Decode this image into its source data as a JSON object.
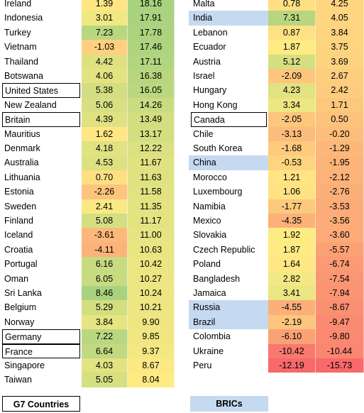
{
  "tables": [
    {
      "rows": [
        {
          "country": "Ireland",
          "a": "1.39",
          "b": "18.16"
        },
        {
          "country": "Indonesia",
          "a": "3.01",
          "b": "17.91"
        },
        {
          "country": "Turkey",
          "a": "7.23",
          "b": "17.78"
        },
        {
          "country": "Vietnam",
          "a": "-1.03",
          "b": "17.46"
        },
        {
          "country": "Thailand",
          "a": "4.42",
          "b": "17.11"
        },
        {
          "country": "Botswana",
          "a": "4.06",
          "b": "16.38"
        },
        {
          "country": "United States",
          "a": "5.38",
          "b": "16.05",
          "legend": 0
        },
        {
          "country": "New Zealand",
          "a": "5.06",
          "b": "14.26"
        },
        {
          "country": "Britain",
          "a": "4.39",
          "b": "13.49",
          "legend": 0
        },
        {
          "country": "Mauritius",
          "a": "1.62",
          "b": "13.17"
        },
        {
          "country": "Denmark",
          "a": "4.18",
          "b": "12.22"
        },
        {
          "country": "Australia",
          "a": "4.53",
          "b": "11.67"
        },
        {
          "country": "Lithuania",
          "a": "0.70",
          "b": "11.63"
        },
        {
          "country": "Estonia",
          "a": "-2.26",
          "b": "11.58"
        },
        {
          "country": "Sweden",
          "a": "2.41",
          "b": "11.35"
        },
        {
          "country": "Finland",
          "a": "5.08",
          "b": "11.17"
        },
        {
          "country": "Iceland",
          "a": "-3.61",
          "b": "11.00"
        },
        {
          "country": "Croatia",
          "a": "-4.11",
          "b": "10.63"
        },
        {
          "country": "Portugal",
          "a": "6.16",
          "b": "10.42"
        },
        {
          "country": "Oman",
          "a": "6.05",
          "b": "10.27"
        },
        {
          "country": "Sri Lanka",
          "a": "8.46",
          "b": "10.24"
        },
        {
          "country": "Belgium",
          "a": "5.29",
          "b": "10.21"
        },
        {
          "country": "Norway",
          "a": "3.84",
          "b": "9.90"
        },
        {
          "country": "Germany",
          "a": "7.22",
          "b": "9.85",
          "legend": 0
        },
        {
          "country": "France",
          "a": "6.64",
          "b": "9.37",
          "legend": 0
        },
        {
          "country": "Singapore",
          "a": "4.03",
          "b": "8.67"
        },
        {
          "country": "Taiwan",
          "a": "5.05",
          "b": "8.04"
        }
      ]
    },
    {
      "rows": [
        {
          "country": "Malta",
          "a": "0.78",
          "b": "4.25"
        },
        {
          "country": "India",
          "a": "7.31",
          "b": "4.05",
          "legend": 1
        },
        {
          "country": "Lebanon",
          "a": "0.87",
          "b": "3.84"
        },
        {
          "country": "Ecuador",
          "a": "1.87",
          "b": "3.75"
        },
        {
          "country": "Austria",
          "a": "5.12",
          "b": "3.69"
        },
        {
          "country": "Israel",
          "a": "-2.09",
          "b": "2.67"
        },
        {
          "country": "Hungary",
          "a": "4.23",
          "b": "2.42"
        },
        {
          "country": "Hong Kong",
          "a": "3.34",
          "b": "1.71"
        },
        {
          "country": "Canada",
          "a": "-2.05",
          "b": "0.50",
          "legend": 0
        },
        {
          "country": "Chile",
          "a": "-3.13",
          "b": "-0.20"
        },
        {
          "country": "South Korea",
          "a": "-1.68",
          "b": "-1.29"
        },
        {
          "country": "China",
          "a": "-0.53",
          "b": "-1.95",
          "legend": 1
        },
        {
          "country": "Morocco",
          "a": "1.21",
          "b": "-2.12"
        },
        {
          "country": "Luxembourg",
          "a": "1.06",
          "b": "-2.76"
        },
        {
          "country": "Namibia",
          "a": "-1.77",
          "b": "-3.53"
        },
        {
          "country": "Mexico",
          "a": "-4.35",
          "b": "-3.56"
        },
        {
          "country": "Slovakia",
          "a": "1.92",
          "b": "-3.60"
        },
        {
          "country": "Czech Republic",
          "a": "1.87",
          "b": "-5.57"
        },
        {
          "country": "Poland",
          "a": "1.64",
          "b": "-6.74"
        },
        {
          "country": "Bangladesh",
          "a": "2.82",
          "b": "-7.54"
        },
        {
          "country": "Jamaica",
          "a": "3.41",
          "b": "-7.94"
        },
        {
          "country": "Russia",
          "a": "-4.55",
          "b": "-8.67",
          "legend": 1
        },
        {
          "country": "Brazil",
          "a": "-2.19",
          "b": "-9.47",
          "legend": 1
        },
        {
          "country": "Colombia",
          "a": "-6.10",
          "b": "-9.80"
        },
        {
          "country": "Ukraine",
          "a": "-10.42",
          "b": "-10.44"
        },
        {
          "country": "Peru",
          "a": "-12.19",
          "b": "-15.73"
        }
      ]
    }
  ],
  "legend": [
    {
      "label": "G7 Countries",
      "style": "outline"
    },
    {
      "label": "BRICs",
      "style": "fill",
      "color": "#c5d9f1"
    }
  ],
  "color_scale": {
    "low": "#f8696b",
    "mid": "#ffeb84",
    "high": "#a9d27f"
  }
}
